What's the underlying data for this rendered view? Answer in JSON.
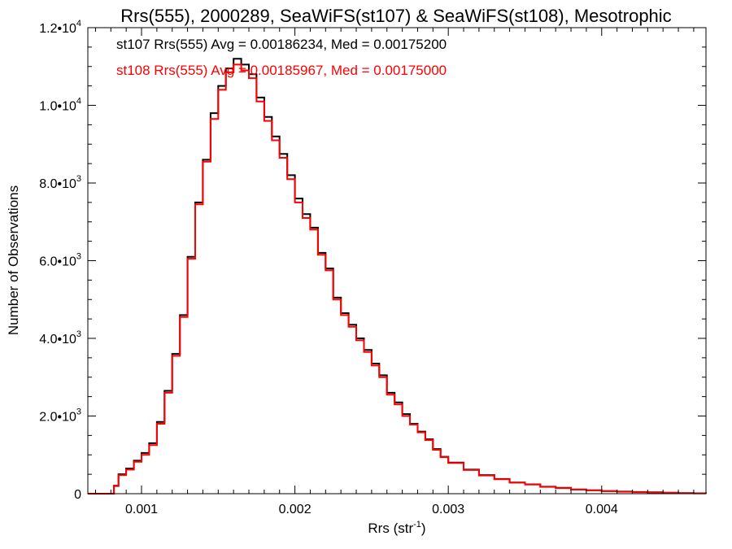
{
  "chart_data": {
    "type": "line",
    "title": "Rrs(555), 2000289, SeaWiFS(st107) & SeaWiFS(st108), Mesotrophic",
    "xlabel": "Rrs (str",
    "xlabel_sup": "-1",
    "xlabel_end": ")",
    "ylabel": "Number of Observations",
    "xlim": [
      0.00065,
      0.00468
    ],
    "ylim": [
      0,
      12000
    ],
    "x_ticks": [
      {
        "value": 0.001,
        "label": "0.001"
      },
      {
        "value": 0.002,
        "label": "0.002"
      },
      {
        "value": 0.003,
        "label": "0.003"
      },
      {
        "value": 0.004,
        "label": "0.004"
      }
    ],
    "y_ticks": [
      {
        "value": 0,
        "label": "0",
        "sup": ""
      },
      {
        "value": 2000,
        "label": "2.0•10",
        "sup": "3"
      },
      {
        "value": 4000,
        "label": "4.0•10",
        "sup": "3"
      },
      {
        "value": 6000,
        "label": "6.0•10",
        "sup": "3"
      },
      {
        "value": 8000,
        "label": "8.0•10",
        "sup": "3"
      },
      {
        "value": 10000,
        "label": "1.0•10",
        "sup": "4"
      },
      {
        "value": 12000,
        "label": "1.2•10",
        "sup": "4"
      }
    ],
    "annotations": [
      {
        "text": "st107 Rrs(555) Avg = 0.00186234, Med = 0.00175200",
        "color": "#000000"
      },
      {
        "text": "st108 Rrs(555) Avg = 0.00185967, Med = 0.00175000",
        "color": "#ff0000"
      }
    ],
    "x": [
      0.00065,
      0.0008,
      0.00082,
      0.00085,
      0.0009,
      0.00095,
      0.001,
      0.00105,
      0.0011,
      0.00115,
      0.0012,
      0.00125,
      0.0013,
      0.00135,
      0.0014,
      0.00145,
      0.0015,
      0.00155,
      0.0016,
      0.00165,
      0.0017,
      0.00175,
      0.0018,
      0.00185,
      0.0019,
      0.00195,
      0.002,
      0.00205,
      0.0021,
      0.00215,
      0.0022,
      0.00225,
      0.0023,
      0.00235,
      0.0024,
      0.00245,
      0.0025,
      0.00255,
      0.0026,
      0.00265,
      0.0027,
      0.00275,
      0.0028,
      0.00285,
      0.0029,
      0.00295,
      0.003,
      0.0031,
      0.0032,
      0.0033,
      0.0034,
      0.0035,
      0.0036,
      0.0037,
      0.0038,
      0.0039,
      0.004,
      0.0041,
      0.0042,
      0.0043,
      0.0044,
      0.0045,
      0.0046,
      0.00468
    ],
    "series": [
      {
        "color": "#000000",
        "values": [
          0,
          0,
          200,
          500,
          650,
          850,
          1050,
          1300,
          1850,
          2650,
          3600,
          4600,
          6100,
          7500,
          8600,
          9800,
          10500,
          10950,
          11200,
          11050,
          10800,
          10200,
          9700,
          9200,
          8750,
          8200,
          7600,
          7200,
          6850,
          6200,
          5800,
          5050,
          4650,
          4350,
          4000,
          3700,
          3350,
          3050,
          2600,
          2350,
          2050,
          1800,
          1600,
          1400,
          1150,
          950,
          800,
          620,
          480,
          380,
          290,
          240,
          180,
          150,
          110,
          90,
          70,
          55,
          45,
          35,
          25,
          15,
          10,
          5
        ]
      },
      {
        "color": "#ff0000",
        "values": [
          0,
          0,
          210,
          480,
          620,
          820,
          1000,
          1250,
          1800,
          2600,
          3550,
          4550,
          6050,
          7450,
          8550,
          9650,
          10400,
          10850,
          11050,
          10900,
          10700,
          10100,
          9600,
          9100,
          8650,
          8100,
          7500,
          7100,
          6800,
          6150,
          5750,
          5000,
          4600,
          4300,
          3950,
          3650,
          3300,
          3000,
          2550,
          2300,
          2000,
          1780,
          1580,
          1380,
          1130,
          940,
          790,
          610,
          470,
          370,
          285,
          235,
          175,
          145,
          105,
          85,
          65,
          50,
          40,
          30,
          20,
          12,
          8,
          4
        ]
      }
    ]
  }
}
